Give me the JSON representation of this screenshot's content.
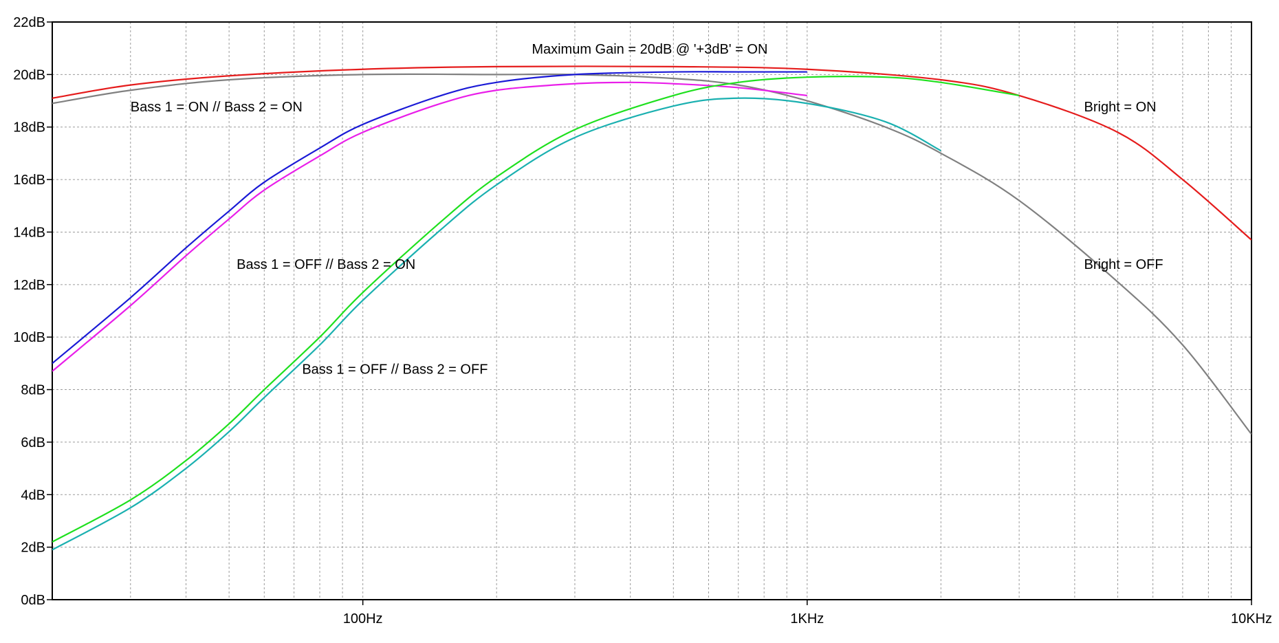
{
  "chart_data": {
    "type": "line",
    "x_scale": "log",
    "xlim": [
      20,
      10000
    ],
    "ylim": [
      0,
      22
    ],
    "grid": true,
    "y_ticks": [
      {
        "value": 0,
        "label": "0dB"
      },
      {
        "value": 2,
        "label": "2dB"
      },
      {
        "value": 4,
        "label": "4dB"
      },
      {
        "value": 6,
        "label": "6dB"
      },
      {
        "value": 8,
        "label": "8dB"
      },
      {
        "value": 10,
        "label": "10dB"
      },
      {
        "value": 12,
        "label": "12dB"
      },
      {
        "value": 14,
        "label": "14dB"
      },
      {
        "value": 16,
        "label": "16dB"
      },
      {
        "value": 18,
        "label": "18dB"
      },
      {
        "value": 20,
        "label": "20dB"
      },
      {
        "value": 22,
        "label": "22dB"
      }
    ],
    "x_ticks": [
      {
        "value": 100,
        "label": "100Hz"
      },
      {
        "value": 1000,
        "label": "1KHz"
      },
      {
        "value": 10000,
        "label": "10KHz"
      }
    ],
    "annotations": [
      {
        "text": "Maximum Gain = 20dB @ '+3dB' = ON",
        "x": 240,
        "y": 20.8
      },
      {
        "text": "Bass 1 = ON // Bass 2 = ON",
        "x": 30,
        "y": 18.6
      },
      {
        "text": "Bass 1 = OFF // Bass 2 = ON",
        "x": 52,
        "y": 12.6
      },
      {
        "text": "Bass 1 = OFF // Bass 2 = OFF",
        "x": 73,
        "y": 8.6
      },
      {
        "text": "Bright = ON",
        "x": 4200,
        "y": 18.6
      },
      {
        "text": "Bright = OFF",
        "x": 4200,
        "y": 12.6
      }
    ],
    "series": [
      {
        "color": "#e51c1c",
        "points": [
          [
            20,
            19.1
          ],
          [
            30,
            19.6
          ],
          [
            50,
            19.95
          ],
          [
            100,
            20.2
          ],
          [
            200,
            20.3
          ],
          [
            500,
            20.3
          ],
          [
            1000,
            20.2
          ],
          [
            2000,
            19.8
          ],
          [
            3000,
            19.2
          ],
          [
            5000,
            17.8
          ],
          [
            7000,
            16.0
          ],
          [
            10000,
            13.7
          ]
        ]
      },
      {
        "color": "#808080",
        "points": [
          [
            20,
            18.9
          ],
          [
            30,
            19.4
          ],
          [
            50,
            19.8
          ],
          [
            100,
            20.0
          ],
          [
            200,
            20.0
          ],
          [
            300,
            20.0
          ],
          [
            500,
            19.85
          ],
          [
            700,
            19.6
          ],
          [
            1000,
            19.0
          ],
          [
            1500,
            18.0
          ],
          [
            2000,
            17.0
          ],
          [
            3000,
            15.2
          ],
          [
            5000,
            12.1
          ],
          [
            7000,
            9.7
          ],
          [
            10000,
            6.3
          ]
        ]
      },
      {
        "color": "#1a1ad6",
        "points": [
          [
            20,
            9.0
          ],
          [
            30,
            11.5
          ],
          [
            40,
            13.4
          ],
          [
            50,
            14.8
          ],
          [
            60,
            15.9
          ],
          [
            80,
            17.2
          ],
          [
            100,
            18.1
          ],
          [
            150,
            19.2
          ],
          [
            200,
            19.7
          ],
          [
            300,
            20.0
          ],
          [
            500,
            20.1
          ],
          [
            700,
            20.1
          ],
          [
            1000,
            20.1
          ]
        ]
      },
      {
        "color": "#e91ee9",
        "points": [
          [
            20,
            8.7
          ],
          [
            30,
            11.2
          ],
          [
            40,
            13.1
          ],
          [
            50,
            14.5
          ],
          [
            60,
            15.6
          ],
          [
            80,
            16.9
          ],
          [
            100,
            17.8
          ],
          [
            150,
            18.9
          ],
          [
            200,
            19.4
          ],
          [
            300,
            19.65
          ],
          [
            400,
            19.7
          ],
          [
            500,
            19.65
          ],
          [
            700,
            19.5
          ],
          [
            1000,
            19.2
          ]
        ]
      },
      {
        "color": "#1ee01e",
        "points": [
          [
            20,
            2.2
          ],
          [
            30,
            3.8
          ],
          [
            40,
            5.3
          ],
          [
            50,
            6.7
          ],
          [
            60,
            8.0
          ],
          [
            80,
            10.0
          ],
          [
            100,
            11.7
          ],
          [
            150,
            14.4
          ],
          [
            200,
            16.1
          ],
          [
            300,
            17.9
          ],
          [
            500,
            19.2
          ],
          [
            700,
            19.7
          ],
          [
            1000,
            19.9
          ],
          [
            1500,
            19.9
          ],
          [
            2000,
            19.7
          ],
          [
            3000,
            19.2
          ]
        ]
      },
      {
        "color": "#1ab0b0",
        "points": [
          [
            20,
            1.9
          ],
          [
            30,
            3.5
          ],
          [
            40,
            5.0
          ],
          [
            50,
            6.4
          ],
          [
            60,
            7.7
          ],
          [
            80,
            9.7
          ],
          [
            100,
            11.4
          ],
          [
            150,
            14.1
          ],
          [
            200,
            15.8
          ],
          [
            300,
            17.6
          ],
          [
            500,
            18.8
          ],
          [
            700,
            19.1
          ],
          [
            1000,
            18.9
          ],
          [
            1500,
            18.2
          ],
          [
            2000,
            17.1
          ]
        ]
      }
    ]
  }
}
